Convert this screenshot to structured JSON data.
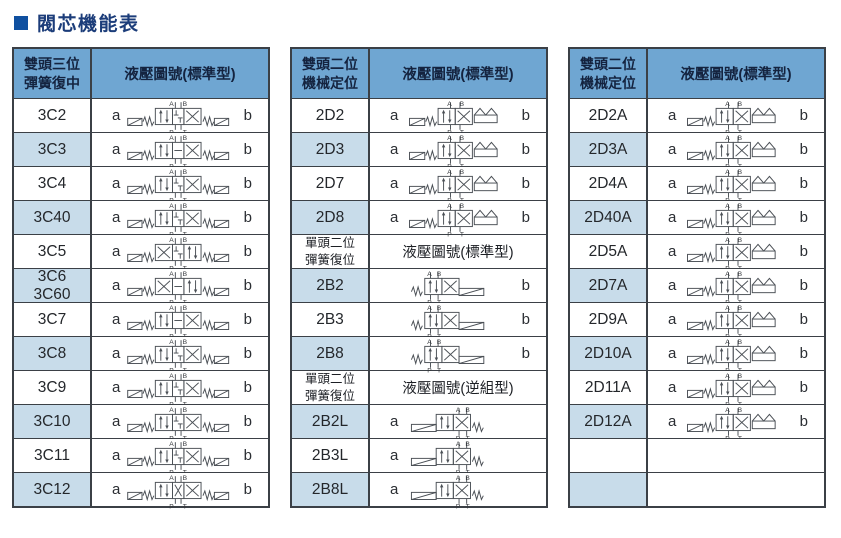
{
  "title": "閥芯機能表",
  "colors": {
    "header_bg": "#6fa6d2",
    "alt_row_bg": "#c8dcea",
    "border": "#3b4046",
    "title_square": "#0f50a0",
    "title_text": "#1c3d7a",
    "diagram_stroke": "#4a4f55"
  },
  "tables": [
    {
      "header": {
        "type_label": "雙頭三位\n彈簧復中",
        "diagram_label": "液壓圖號(標準型)"
      },
      "rows": [
        {
          "kind": "data",
          "code": "3C2",
          "a": "a",
          "b": "b",
          "sym": "3C",
          "symbol": "valve-symbol-3pos-spring-centered"
        },
        {
          "kind": "data",
          "code": "3C3",
          "a": "a",
          "b": "b",
          "sym": "3C",
          "cells": [
            "arr",
            "hb",
            "xx"
          ],
          "symbol": "valve-symbol-3pos-spring-centered"
        },
        {
          "kind": "data",
          "code": "3C4",
          "a": "a",
          "b": "b",
          "sym": "3C",
          "symbol": "valve-symbol-3pos-spring-centered"
        },
        {
          "kind": "data",
          "code": "3C40",
          "a": "a",
          "b": "b",
          "sym": "3C",
          "symbol": "valve-symbol-3pos-spring-centered"
        },
        {
          "kind": "data",
          "code": "3C5",
          "a": "a",
          "b": "b",
          "sym": "3C",
          "cells": [
            "xx",
            "blk",
            "arr"
          ],
          "symbol": "valve-symbol-3pos-spring-centered"
        },
        {
          "kind": "data",
          "code": "3C6\n3C60",
          "a": "a",
          "b": "b",
          "sym": "3C",
          "cells": [
            "xx",
            "hb",
            "arr"
          ],
          "symbol": "valve-symbol-3pos-spring-centered"
        },
        {
          "kind": "data",
          "code": "3C7",
          "a": "a",
          "b": "b",
          "sym": "3C",
          "cells": [
            "arr",
            "hb",
            "xx"
          ],
          "symbol": "valve-symbol-3pos-spring-centered"
        },
        {
          "kind": "data",
          "code": "3C8",
          "a": "a",
          "b": "b",
          "sym": "3C",
          "symbol": "valve-symbol-3pos-spring-centered"
        },
        {
          "kind": "data",
          "code": "3C9",
          "a": "a",
          "b": "b",
          "sym": "3C",
          "symbol": "valve-symbol-3pos-spring-centered"
        },
        {
          "kind": "data",
          "code": "3C10",
          "a": "a",
          "b": "b",
          "sym": "3C",
          "cells": [
            "arr",
            "blk",
            "xx"
          ],
          "symbol": "valve-symbol-3pos-spring-centered"
        },
        {
          "kind": "data",
          "code": "3C11",
          "a": "a",
          "b": "b",
          "sym": "3C",
          "symbol": "valve-symbol-3pos-spring-centered"
        },
        {
          "kind": "data",
          "code": "3C12",
          "a": "a",
          "b": "b",
          "sym": "3C",
          "cells": [
            "arr",
            "xx",
            "xx"
          ],
          "symbol": "valve-symbol-3pos-spring-centered"
        }
      ]
    },
    {
      "header": {
        "type_label": "雙頭二位\n機械定位",
        "diagram_label": "液壓圖號(標準型)"
      },
      "rows": [
        {
          "kind": "data",
          "code": "2D2",
          "a": "a",
          "b": "b",
          "sym": "2D",
          "symbol": "valve-symbol-2pos-detent"
        },
        {
          "kind": "data",
          "code": "2D3",
          "a": "a",
          "b": "b",
          "sym": "2D",
          "symbol": "valve-symbol-2pos-detent"
        },
        {
          "kind": "data",
          "code": "2D7",
          "a": "a",
          "b": "b",
          "sym": "2D",
          "symbol": "valve-symbol-2pos-detent"
        },
        {
          "kind": "data",
          "code": "2D8",
          "a": "a",
          "b": "b",
          "sym": "2D",
          "symbol": "valve-symbol-2pos-detent"
        },
        {
          "kind": "section",
          "left": "單頭二位\n彈簧復位",
          "right": "液壓圖號(標準型)"
        },
        {
          "kind": "data",
          "code": "2B2",
          "a": "",
          "b": "b",
          "sym": "2B",
          "symbol": "valve-symbol-2pos-spring-return"
        },
        {
          "kind": "data",
          "code": "2B3",
          "a": "",
          "b": "b",
          "sym": "2B",
          "symbol": "valve-symbol-2pos-spring-return"
        },
        {
          "kind": "data",
          "code": "2B8",
          "a": "",
          "b": "b",
          "sym": "2B",
          "symbol": "valve-symbol-2pos-spring-return"
        },
        {
          "kind": "section",
          "left": "單頭二位\n彈簧復位",
          "right": "液壓圖號(逆組型)"
        },
        {
          "kind": "data",
          "code": "2B2L",
          "a": "a",
          "b": "",
          "sym": "2BL",
          "symbol": "valve-symbol-2pos-spring-return-reverse"
        },
        {
          "kind": "data",
          "code": "2B3L",
          "a": "a",
          "b": "",
          "sym": "2BL",
          "symbol": "valve-symbol-2pos-spring-return-reverse"
        },
        {
          "kind": "data",
          "code": "2B8L",
          "a": "a",
          "b": "",
          "sym": "2BL",
          "symbol": "valve-symbol-2pos-spring-return-reverse"
        }
      ]
    },
    {
      "header": {
        "type_label": "雙頭二位\n機械定位",
        "diagram_label": "液壓圖號(標準型)"
      },
      "rows": [
        {
          "kind": "data",
          "code": "2D2A",
          "a": "a",
          "b": "b",
          "sym": "2D",
          "symbol": "valve-symbol-2pos-detent"
        },
        {
          "kind": "data",
          "code": "2D3A",
          "a": "a",
          "b": "b",
          "sym": "2D",
          "symbol": "valve-symbol-2pos-detent"
        },
        {
          "kind": "data",
          "code": "2D4A",
          "a": "a",
          "b": "b",
          "sym": "2D",
          "symbol": "valve-symbol-2pos-detent"
        },
        {
          "kind": "data",
          "code": "2D40A",
          "a": "a",
          "b": "b",
          "sym": "2D",
          "symbol": "valve-symbol-2pos-detent"
        },
        {
          "kind": "data",
          "code": "2D5A",
          "a": "a",
          "b": "b",
          "sym": "2D",
          "symbol": "valve-symbol-2pos-detent"
        },
        {
          "kind": "data",
          "code": "2D7A",
          "a": "a",
          "b": "b",
          "sym": "2D",
          "symbol": "valve-symbol-2pos-detent"
        },
        {
          "kind": "data",
          "code": "2D9A",
          "a": "a",
          "b": "b",
          "sym": "2D",
          "symbol": "valve-symbol-2pos-detent"
        },
        {
          "kind": "data",
          "code": "2D10A",
          "a": "a",
          "b": "b",
          "sym": "2D",
          "symbol": "valve-symbol-2pos-detent"
        },
        {
          "kind": "data",
          "code": "2D11A",
          "a": "a",
          "b": "b",
          "sym": "2D",
          "symbol": "valve-symbol-2pos-detent"
        },
        {
          "kind": "data",
          "code": "2D12A",
          "a": "a",
          "b": "b",
          "sym": "2D",
          "cells": [
            "arr",
            "xx"
          ],
          "symbol": "valve-symbol-2pos-detent"
        },
        {
          "kind": "empty",
          "code": "",
          "a": "",
          "b": ""
        },
        {
          "kind": "empty",
          "code": "",
          "a": "",
          "b": ""
        }
      ]
    }
  ]
}
